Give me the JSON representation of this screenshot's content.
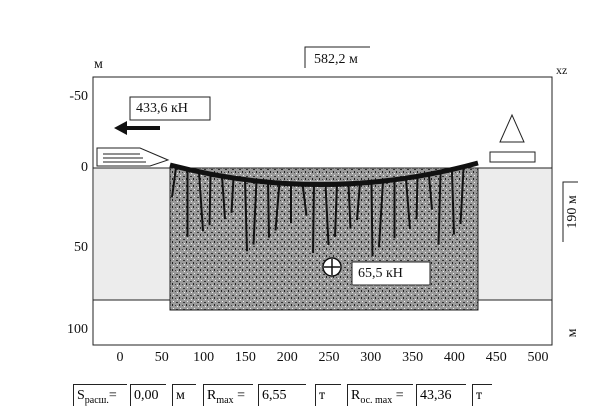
{
  "header": {
    "span_label": "582,2 м",
    "y_unit": "м",
    "plane": "xz"
  },
  "axes": {
    "x_ticks": [
      "0",
      "50",
      "100",
      "150",
      "200",
      "250",
      "300",
      "350",
      "400",
      "450",
      "500"
    ],
    "y_ticks": [
      "-50",
      "0",
      "50",
      "100"
    ],
    "x_unit": "м"
  },
  "annotations": {
    "pull_force": "433,6 кН",
    "tip_force": "65,5 кН",
    "depth_label": "190 м"
  },
  "footer": [
    {
      "label": "S",
      "subscript": "расш.",
      "equals": "=",
      "value": "0,00",
      "unit": "м"
    },
    {
      "label": "R",
      "subscript": "max",
      "equals": "=",
      "value": "6,55",
      "unit": "т"
    },
    {
      "label": "R",
      "subscript": "ос. max",
      "equals": "=",
      "value": "43,36",
      "unit": "т"
    }
  ]
}
